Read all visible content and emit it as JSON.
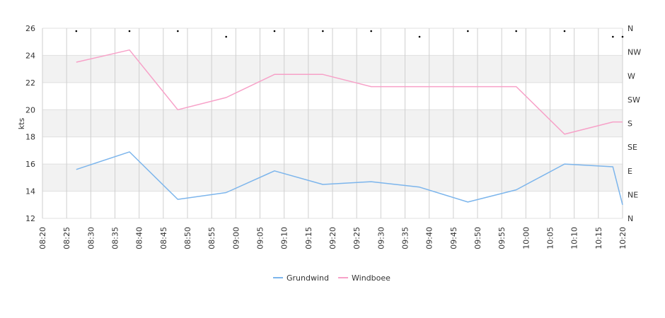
{
  "chart_data": {
    "type": "line",
    "title": "",
    "ylabel": "kts",
    "ylim": [
      12,
      26
    ],
    "y_ticks": [
      "12",
      "14",
      "16",
      "18",
      "20",
      "22",
      "24",
      "26"
    ],
    "right_axis_labels": [
      "N",
      "NE",
      "E",
      "SE",
      "S",
      "SW",
      "W",
      "NW",
      "N"
    ],
    "x_ticks": [
      "08:20",
      "08:25",
      "08:30",
      "08:35",
      "08:40",
      "08:45",
      "08:50",
      "08:55",
      "09:00",
      "09:05",
      "09:10",
      "09:15",
      "09:20",
      "09:25",
      "09:30",
      "09:35",
      "09:40",
      "09:45",
      "09:50",
      "09:55",
      "10:00",
      "10:05",
      "10:10",
      "10:15",
      "10:20"
    ],
    "x_range": [
      "08:20",
      "10:20"
    ],
    "grid": true,
    "legend_position": "bottom-center",
    "series": [
      {
        "name": "Grundwind",
        "color": "#7cb5ec",
        "points": [
          [
            "08:27",
            15.6
          ],
          [
            "08:38",
            16.9
          ],
          [
            "08:48",
            13.4
          ],
          [
            "08:58",
            13.9
          ],
          [
            "09:08",
            15.5
          ],
          [
            "09:18",
            14.5
          ],
          [
            "09:28",
            14.7
          ],
          [
            "09:38",
            14.3
          ],
          [
            "09:48",
            13.2
          ],
          [
            "09:58",
            14.1
          ],
          [
            "10:08",
            16.0
          ],
          [
            "10:18",
            15.8
          ],
          [
            "10:20",
            13.0
          ]
        ]
      },
      {
        "name": "Windboee",
        "color": "#f7a1c8",
        "points": [
          [
            "08:27",
            23.5
          ],
          [
            "08:38",
            24.4
          ],
          [
            "08:48",
            20.0
          ],
          [
            "08:58",
            20.9
          ],
          [
            "09:08",
            22.6
          ],
          [
            "09:18",
            22.6
          ],
          [
            "09:28",
            21.7
          ],
          [
            "09:38",
            21.7
          ],
          [
            "09:48",
            21.7
          ],
          [
            "09:58",
            21.7
          ],
          [
            "10:08",
            18.2
          ],
          [
            "10:18",
            19.1
          ],
          [
            "10:20",
            19.1
          ]
        ]
      }
    ],
    "direction_markers": [
      [
        "08:27",
        "N"
      ],
      [
        "08:38",
        "N"
      ],
      [
        "08:48",
        "N"
      ],
      [
        "08:58",
        "NW"
      ],
      [
        "09:08",
        "N"
      ],
      [
        "09:18",
        "N"
      ],
      [
        "09:28",
        "N"
      ],
      [
        "09:38",
        "NW"
      ],
      [
        "09:48",
        "N"
      ],
      [
        "09:58",
        "N"
      ],
      [
        "10:08",
        "N"
      ],
      [
        "10:18",
        "NW"
      ],
      [
        "10:20",
        "NW"
      ]
    ]
  }
}
